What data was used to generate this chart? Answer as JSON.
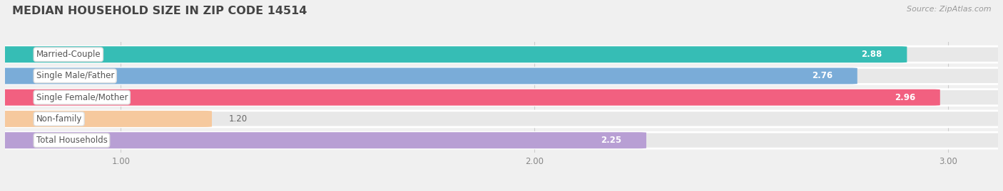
{
  "title": "MEDIAN HOUSEHOLD SIZE IN ZIP CODE 14514",
  "source": "Source: ZipAtlas.com",
  "categories": [
    "Married-Couple",
    "Single Male/Father",
    "Single Female/Mother",
    "Non-family",
    "Total Households"
  ],
  "values": [
    2.88,
    2.76,
    2.96,
    1.2,
    2.25
  ],
  "bar_colors": [
    "#36bdb5",
    "#7aacd8",
    "#f26080",
    "#f6c99e",
    "#b89fd4"
  ],
  "xlim_left": 0.72,
  "xlim_right": 3.12,
  "xticks": [
    1.0,
    2.0,
    3.0
  ],
  "value_labels": [
    "2.88",
    "2.76",
    "2.96",
    "1.20",
    "2.25"
  ],
  "value_inside_threshold": 1.8,
  "bg_color": "#f0f0f0",
  "bar_bg_color": "#e8e8e8",
  "bar_bg_edge": "#ffffff",
  "label_box_color": "#ffffff",
  "title_fontsize": 11.5,
  "label_fontsize": 8.5,
  "value_fontsize": 8.5,
  "source_fontsize": 8.0,
  "bar_height": 0.72,
  "bar_spacing": 1.0
}
